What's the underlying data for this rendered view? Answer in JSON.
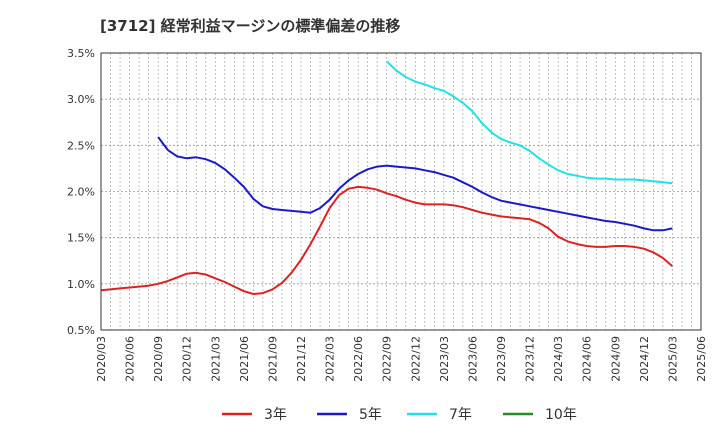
{
  "chart_data": {
    "type": "line",
    "title": "[3712]  経常利益マージンの標準偏差の推移",
    "y_ticks": [
      "0.5%",
      "1.0%",
      "1.5%",
      "2.0%",
      "2.5%",
      "3.0%",
      "3.5%"
    ],
    "ylim": [
      0.5,
      3.5
    ],
    "x_ticks": [
      "2020/03",
      "2020/06",
      "2020/09",
      "2020/12",
      "2021/03",
      "2021/06",
      "2021/09",
      "2021/12",
      "2022/03",
      "2022/06",
      "2022/09",
      "2022/12",
      "2023/03",
      "2023/06",
      "2023/09",
      "2023/12",
      "2024/03",
      "2024/06",
      "2024/09",
      "2024/12",
      "2025/03",
      "2025/06"
    ],
    "grid": true,
    "legend_position": "bottom",
    "series": [
      {
        "name": "3年",
        "color": "#dd2222",
        "points": [
          [
            "2020/03",
            0.93
          ],
          [
            "2020/04",
            0.94
          ],
          [
            "2020/05",
            0.95
          ],
          [
            "2020/06",
            0.96
          ],
          [
            "2020/07",
            0.97
          ],
          [
            "2020/08",
            0.98
          ],
          [
            "2020/09",
            1.0
          ],
          [
            "2020/10",
            1.03
          ],
          [
            "2020/11",
            1.07
          ],
          [
            "2020/12",
            1.11
          ],
          [
            "2021/01",
            1.12
          ],
          [
            "2021/02",
            1.1
          ],
          [
            "2021/03",
            1.06
          ],
          [
            "2021/04",
            1.02
          ],
          [
            "2021/05",
            0.97
          ],
          [
            "2021/06",
            0.92
          ],
          [
            "2021/07",
            0.89
          ],
          [
            "2021/08",
            0.9
          ],
          [
            "2021/09",
            0.94
          ],
          [
            "2021/10",
            1.01
          ],
          [
            "2021/11",
            1.12
          ],
          [
            "2021/12",
            1.26
          ],
          [
            "2022/01",
            1.43
          ],
          [
            "2022/02",
            1.62
          ],
          [
            "2022/03",
            1.82
          ],
          [
            "2022/04",
            1.96
          ],
          [
            "2022/05",
            2.03
          ],
          [
            "2022/06",
            2.05
          ],
          [
            "2022/07",
            2.04
          ],
          [
            "2022/08",
            2.02
          ],
          [
            "2022/09",
            1.98
          ],
          [
            "2022/10",
            1.95
          ],
          [
            "2022/11",
            1.91
          ],
          [
            "2022/12",
            1.88
          ],
          [
            "2023/01",
            1.86
          ],
          [
            "2023/02",
            1.86
          ],
          [
            "2023/03",
            1.86
          ],
          [
            "2023/04",
            1.85
          ],
          [
            "2023/05",
            1.83
          ],
          [
            "2023/06",
            1.8
          ],
          [
            "2023/07",
            1.77
          ],
          [
            "2023/08",
            1.75
          ],
          [
            "2023/09",
            1.73
          ],
          [
            "2023/10",
            1.72
          ],
          [
            "2023/11",
            1.71
          ],
          [
            "2023/12",
            1.7
          ],
          [
            "2024/01",
            1.66
          ],
          [
            "2024/02",
            1.6
          ],
          [
            "2024/03",
            1.51
          ],
          [
            "2024/04",
            1.46
          ],
          [
            "2024/05",
            1.43
          ],
          [
            "2024/06",
            1.41
          ],
          [
            "2024/07",
            1.4
          ],
          [
            "2024/08",
            1.4
          ],
          [
            "2024/09",
            1.41
          ],
          [
            "2024/10",
            1.41
          ],
          [
            "2024/11",
            1.4
          ],
          [
            "2024/12",
            1.38
          ],
          [
            "2025/01",
            1.34
          ],
          [
            "2025/02",
            1.28
          ],
          [
            "2025/03",
            1.19
          ]
        ]
      },
      {
        "name": "5年",
        "color": "#1a1acc",
        "points": [
          [
            "2020/09",
            2.59
          ],
          [
            "2020/10",
            2.45
          ],
          [
            "2020/11",
            2.38
          ],
          [
            "2020/12",
            2.36
          ],
          [
            "2021/01",
            2.37
          ],
          [
            "2021/02",
            2.35
          ],
          [
            "2021/03",
            2.31
          ],
          [
            "2021/04",
            2.24
          ],
          [
            "2021/05",
            2.15
          ],
          [
            "2021/06",
            2.05
          ],
          [
            "2021/07",
            1.92
          ],
          [
            "2021/08",
            1.84
          ],
          [
            "2021/09",
            1.81
          ],
          [
            "2021/10",
            1.8
          ],
          [
            "2021/11",
            1.79
          ],
          [
            "2021/12",
            1.78
          ],
          [
            "2022/01",
            1.77
          ],
          [
            "2022/02",
            1.82
          ],
          [
            "2022/03",
            1.91
          ],
          [
            "2022/04",
            2.03
          ],
          [
            "2022/05",
            2.12
          ],
          [
            "2022/06",
            2.19
          ],
          [
            "2022/07",
            2.24
          ],
          [
            "2022/08",
            2.27
          ],
          [
            "2022/09",
            2.28
          ],
          [
            "2022/10",
            2.27
          ],
          [
            "2022/11",
            2.26
          ],
          [
            "2022/12",
            2.25
          ],
          [
            "2023/01",
            2.23
          ],
          [
            "2023/02",
            2.21
          ],
          [
            "2023/03",
            2.18
          ],
          [
            "2023/04",
            2.15
          ],
          [
            "2023/05",
            2.1
          ],
          [
            "2023/06",
            2.05
          ],
          [
            "2023/07",
            1.99
          ],
          [
            "2023/08",
            1.94
          ],
          [
            "2023/09",
            1.9
          ],
          [
            "2023/10",
            1.88
          ],
          [
            "2023/11",
            1.86
          ],
          [
            "2023/12",
            1.84
          ],
          [
            "2024/01",
            1.82
          ],
          [
            "2024/02",
            1.8
          ],
          [
            "2024/03",
            1.78
          ],
          [
            "2024/04",
            1.76
          ],
          [
            "2024/05",
            1.74
          ],
          [
            "2024/06",
            1.72
          ],
          [
            "2024/07",
            1.7
          ],
          [
            "2024/08",
            1.68
          ],
          [
            "2024/09",
            1.67
          ],
          [
            "2024/10",
            1.65
          ],
          [
            "2024/11",
            1.63
          ],
          [
            "2024/12",
            1.6
          ],
          [
            "2025/01",
            1.58
          ],
          [
            "2025/02",
            1.58
          ],
          [
            "2025/03",
            1.6
          ]
        ]
      },
      {
        "name": "7年",
        "color": "#22e0e8",
        "points": [
          [
            "2022/09",
            3.41
          ],
          [
            "2022/10",
            3.31
          ],
          [
            "2022/11",
            3.24
          ],
          [
            "2022/12",
            3.19
          ],
          [
            "2023/01",
            3.16
          ],
          [
            "2023/02",
            3.12
          ],
          [
            "2023/03",
            3.09
          ],
          [
            "2023/04",
            3.03
          ],
          [
            "2023/05",
            2.96
          ],
          [
            "2023/06",
            2.87
          ],
          [
            "2023/07",
            2.74
          ],
          [
            "2023/08",
            2.64
          ],
          [
            "2023/09",
            2.57
          ],
          [
            "2023/10",
            2.53
          ],
          [
            "2023/11",
            2.5
          ],
          [
            "2023/12",
            2.44
          ],
          [
            "2024/01",
            2.36
          ],
          [
            "2024/02",
            2.29
          ],
          [
            "2024/03",
            2.23
          ],
          [
            "2024/04",
            2.19
          ],
          [
            "2024/05",
            2.17
          ],
          [
            "2024/06",
            2.15
          ],
          [
            "2024/07",
            2.14
          ],
          [
            "2024/08",
            2.14
          ],
          [
            "2024/09",
            2.13
          ],
          [
            "2024/10",
            2.13
          ],
          [
            "2024/11",
            2.13
          ],
          [
            "2024/12",
            2.12
          ],
          [
            "2025/01",
            2.11
          ],
          [
            "2025/02",
            2.1
          ],
          [
            "2025/03",
            2.09
          ]
        ]
      },
      {
        "name": "10年",
        "color": "#2a8a2a",
        "points": []
      }
    ]
  }
}
